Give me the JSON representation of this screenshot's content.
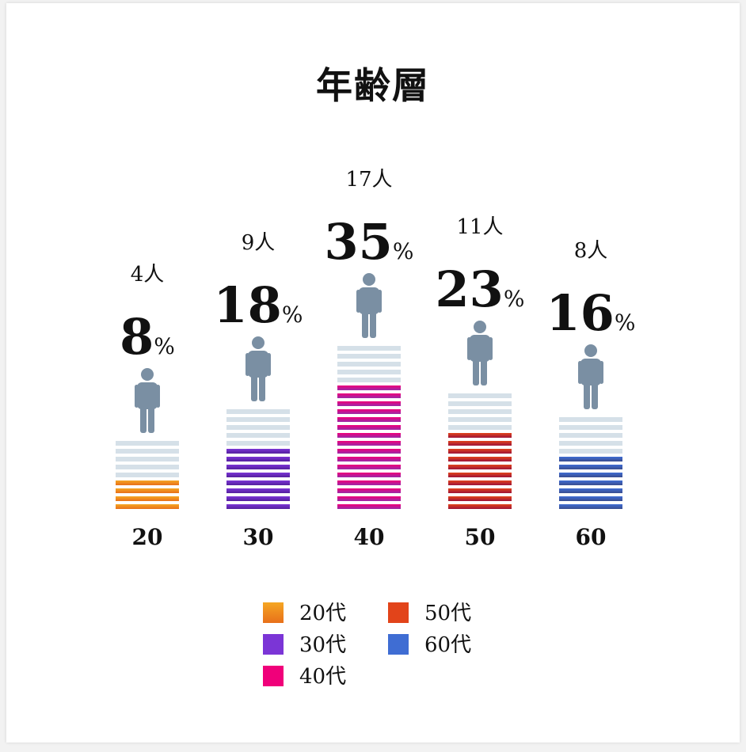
{
  "title": "年齢層",
  "chart_data": {
    "type": "bar",
    "title": "年齢層",
    "categories": [
      "20",
      "30",
      "40",
      "50",
      "60"
    ],
    "values": [
      8,
      18,
      35,
      23,
      16
    ],
    "counts": [
      "4人",
      "9人",
      "17人",
      "11人",
      "8人"
    ],
    "percent_unit": "%",
    "legend": [
      "20代",
      "30代",
      "40代",
      "50代",
      "60代"
    ],
    "legend_position": "bottom-center",
    "colors": [
      [
        "#f5a623",
        "#e8701a"
      ],
      [
        "#7b35d6",
        "#54209e"
      ],
      [
        "#f0007a",
        "#9b2aa8"
      ],
      [
        "#e2441a",
        "#9e1438"
      ],
      [
        "#3f6dd3",
        "#3a4d8f"
      ]
    ],
    "track_color": "#d5e0e8",
    "person_color": "#7a8fa3",
    "person_icon": "person-icon",
    "grid": false
  }
}
